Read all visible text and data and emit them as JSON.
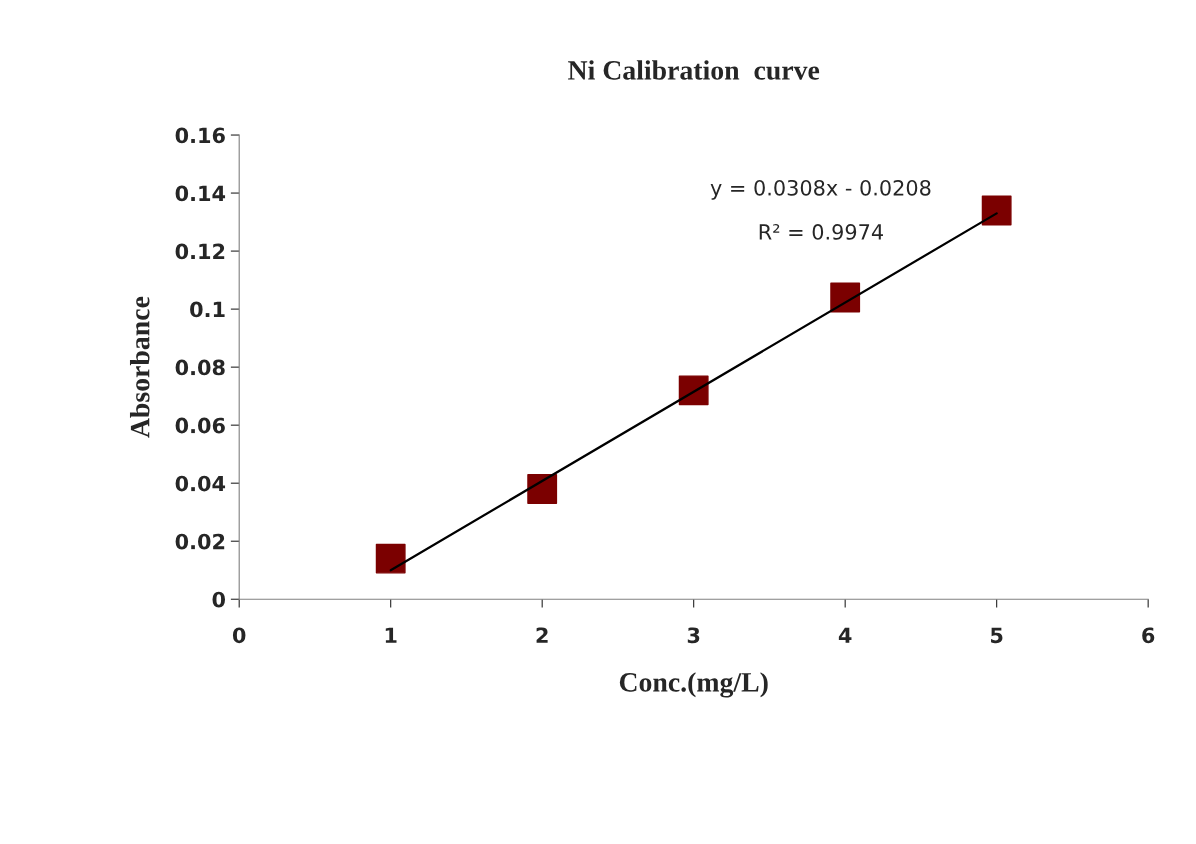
{
  "chart_data": {
    "type": "scatter",
    "title": "Ni Calibration  curve",
    "xlabel": "Conc.(mg/L)",
    "ylabel": "Absorbance",
    "x": [
      1,
      2,
      3,
      4,
      5
    ],
    "series": [
      {
        "color": "#7b0000",
        "marker": "square",
        "values": [
          0.014,
          0.038,
          0.072,
          0.104,
          0.134
        ]
      },
      {
        "type": "line",
        "color": "#000000",
        "x": [
          1,
          5
        ],
        "values": [
          0.01,
          0.133
        ]
      }
    ],
    "annotations": [
      "y = 0.0308x - 0.0208",
      "R² = 0.9974"
    ],
    "xlim": [
      0,
      6
    ],
    "xticks": [
      0,
      1,
      2,
      3,
      4,
      5,
      6
    ],
    "ylim": [
      0,
      0.16
    ],
    "yticks": [
      0,
      0.02,
      0.04,
      0.06,
      0.08,
      0.1,
      0.12,
      0.14,
      0.16
    ],
    "grid": false
  }
}
